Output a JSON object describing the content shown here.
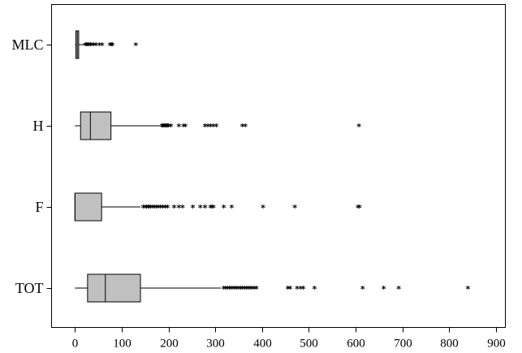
{
  "chart_data": {
    "type": "boxplot",
    "orientation": "horizontal",
    "title": "",
    "xlabel": "",
    "ylabel": "",
    "xlim": [
      -50,
      920
    ],
    "xticks": [
      0,
      100,
      200,
      300,
      400,
      500,
      600,
      700,
      800,
      900
    ],
    "grid": false,
    "legend": "none",
    "box_color": "#c0c0c0",
    "series": [
      {
        "label": "MLC",
        "whisker_low": 0,
        "q1": 2,
        "median": 5,
        "q3": 8,
        "whisker_high": 20,
        "outliers": [
          22,
          25,
          27,
          30,
          33,
          36,
          40,
          45,
          52,
          58,
          75,
          78,
          80,
          130
        ]
      },
      {
        "label": "H",
        "whisker_low": 0,
        "q1": 12,
        "median": 33,
        "q3": 77,
        "whisker_high": 182,
        "outliers": [
          186,
          188,
          190,
          192,
          194,
          196,
          198,
          200,
          205,
          222,
          232,
          236,
          278,
          284,
          290,
          296,
          302,
          358,
          364,
          607
        ]
      },
      {
        "label": "F",
        "whisker_low": 0,
        "q1": 0,
        "median": 0,
        "q3": 57,
        "whisker_high": 140,
        "outliers": [
          146,
          150,
          153,
          156,
          159,
          162,
          166,
          170,
          174,
          178,
          183,
          188,
          193,
          198,
          212,
          222,
          230,
          252,
          268,
          278,
          290,
          293,
          296,
          318,
          335,
          402,
          470,
          605,
          608
        ]
      },
      {
        "label": "TOT",
        "whisker_low": 0,
        "q1": 27,
        "median": 65,
        "q3": 140,
        "whisker_high": 312,
        "outliers": [
          318,
          322,
          326,
          330,
          334,
          338,
          342,
          346,
          350,
          354,
          358,
          362,
          366,
          370,
          374,
          378,
          383,
          388,
          455,
          460,
          475,
          482,
          488,
          512,
          615,
          660,
          692,
          840
        ]
      }
    ]
  }
}
